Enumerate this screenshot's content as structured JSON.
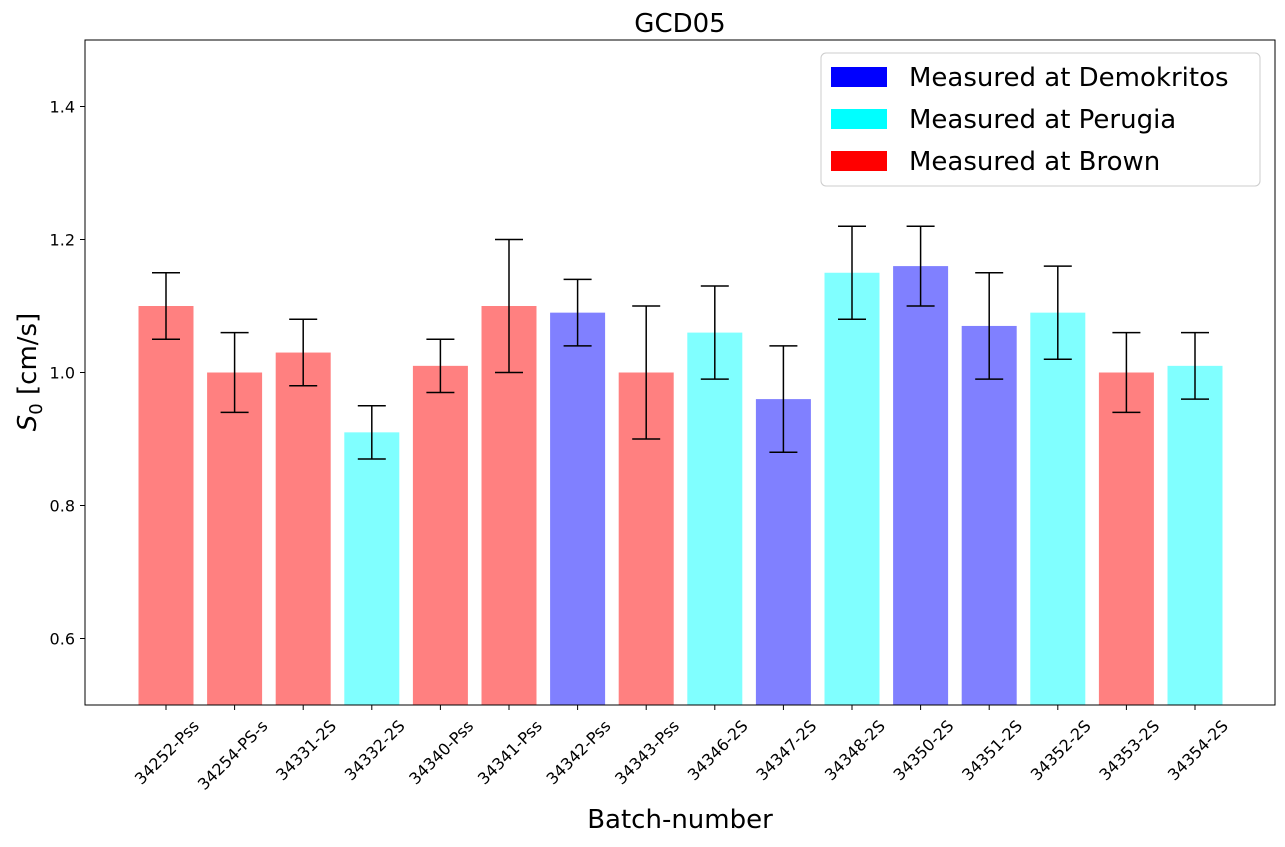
{
  "chart_data": {
    "type": "bar",
    "title": "GCD05",
    "xlabel": "Batch-number",
    "ylabel_main": "S",
    "ylabel_sub": "0",
    "ylabel_rest": " [cm/s]",
    "ylim": [
      0.5,
      1.5
    ],
    "yticks": [
      0.6,
      0.8,
      1.0,
      1.2,
      1.4
    ],
    "ytick_labels": [
      "0.6",
      "0.8",
      "1.0",
      "1.2",
      "1.4"
    ],
    "grid": false,
    "legend_position": "top-right",
    "legend": [
      {
        "label": "Measured at Demokritos",
        "color": "#0000ff"
      },
      {
        "label": "Measured at Perugia",
        "color": "#00ffff"
      },
      {
        "label": "Measured at Brown",
        "color": "#ff0000"
      }
    ],
    "categories": [
      "34252-Pss",
      "34254-PS-s",
      "34331-2S",
      "34332-2S",
      "34340-Pss",
      "34341-Pss",
      "34342-Pss",
      "34343-Pss",
      "34346-2S",
      "34347-2S",
      "34348-2S",
      "34350-2S",
      "34351-2S",
      "34352-2S",
      "34353-2S",
      "34354-2S"
    ],
    "values": [
      1.1,
      1.0,
      1.03,
      0.91,
      1.01,
      1.1,
      1.09,
      1.0,
      1.06,
      0.96,
      1.15,
      1.16,
      1.07,
      1.09,
      1.0,
      1.01
    ],
    "errors": [
      0.05,
      0.06,
      0.05,
      0.04,
      0.04,
      0.1,
      0.05,
      0.1,
      0.07,
      0.08,
      0.07,
      0.06,
      0.08,
      0.07,
      0.06,
      0.05
    ],
    "site": [
      "Brown",
      "Brown",
      "Brown",
      "Perugia",
      "Brown",
      "Brown",
      "Demokritos",
      "Brown",
      "Perugia",
      "Demokritos",
      "Perugia",
      "Demokritos",
      "Demokritos",
      "Perugia",
      "Brown",
      "Perugia"
    ],
    "bar_colors": {
      "Demokritos": "#8080ff",
      "Perugia": "#80ffff",
      "Brown": "#ff8080"
    }
  }
}
